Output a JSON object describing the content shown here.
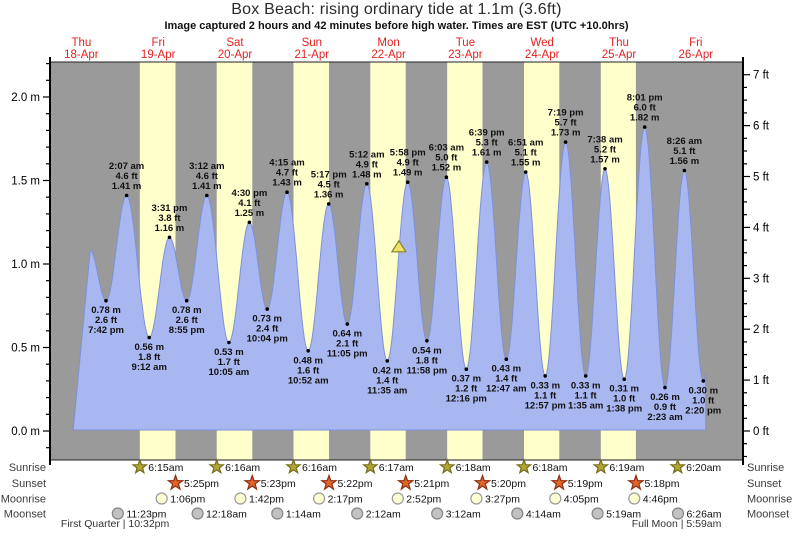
{
  "header": {
    "title": "Box Beach: rising  ordinary tide at 1.1m (3.6ft)",
    "subtitle": "Image captured 2 hours and 42 minutes before high water. Times are EST (UTC +10.0hrs)"
  },
  "colors": {
    "plot_bg": "#9a9a9a",
    "daylight": "#ffffcc",
    "tide_fill": "#a9b7f0",
    "tide_stroke": "#7d92d9",
    "axis": "#000000",
    "day_label": "#e32222",
    "tide_text": "#111111",
    "marker_fill": "#ede26a",
    "marker_stroke": "#8a822a",
    "sunrise_fill": "#b3a636",
    "sunrise_stroke": "#756d1b",
    "sunset_fill": "#e0662c",
    "sunset_stroke": "#8e2f12",
    "moonrise_fill": "#ffffd4",
    "moonrise_stroke": "#9a9a9a",
    "moonset_fill": "#c2c2c2",
    "moonset_stroke": "#858585",
    "row_label": "#3d3d3d"
  },
  "chart_data": {
    "type": "area",
    "title": "Box Beach tide height over time",
    "x_unit": "hours since Thu 18-Apr 00:00 EST",
    "y_unit_left": "m",
    "y_unit_right": "ft",
    "ylim_m": [
      -0.17,
      2.21
    ],
    "days": [
      {
        "name": "Thu",
        "date": "18-Apr"
      },
      {
        "name": "Fri",
        "date": "19-Apr"
      },
      {
        "name": "Sat",
        "date": "20-Apr"
      },
      {
        "name": "Sun",
        "date": "21-Apr"
      },
      {
        "name": "Mon",
        "date": "22-Apr"
      },
      {
        "name": "Tue",
        "date": "23-Apr"
      },
      {
        "name": "Wed",
        "date": "24-Apr"
      },
      {
        "name": "Thu",
        "date": "25-Apr"
      },
      {
        "name": "Fri",
        "date": "26-Apr"
      }
    ],
    "y_axis_left_ticks": [
      "0.0 m",
      "0.5 m",
      "1.0 m",
      "1.5 m",
      "2.0 m"
    ],
    "y_axis_right_ticks": [
      "0 ft",
      "1 ft",
      "2 ft",
      "3 ft",
      "4 ft",
      "5 ft",
      "6 ft",
      "7 ft"
    ],
    "tides": [
      {
        "kind": "H",
        "t": 14.75,
        "v": 1.08
      },
      {
        "kind": "L",
        "t": 19.7,
        "v": 0.78,
        "lines": [
          "0.78 m",
          "2.6 ft",
          "7:42 pm"
        ]
      },
      {
        "kind": "H",
        "t": 26.12,
        "v": 1.41,
        "lines": [
          "2:07 am",
          "4.6 ft",
          "1.41 m"
        ]
      },
      {
        "kind": "L",
        "t": 33.2,
        "v": 0.56,
        "lines": [
          "0.56 m",
          "1.8 ft",
          "9:12 am"
        ]
      },
      {
        "kind": "H",
        "t": 39.52,
        "v": 1.16,
        "lines": [
          "3:31 pm",
          "3.8 ft",
          "1.16 m"
        ]
      },
      {
        "kind": "L",
        "t": 44.92,
        "v": 0.78,
        "lines": [
          "0.78 m",
          "2.6 ft",
          "8:55 pm"
        ]
      },
      {
        "kind": "H",
        "t": 51.2,
        "v": 1.41,
        "lines": [
          "3:12 am",
          "4.6 ft",
          "1.41 m"
        ]
      },
      {
        "kind": "L",
        "t": 58.08,
        "v": 0.53,
        "lines": [
          "0.53 m",
          "1.7 ft",
          "10:05 am"
        ]
      },
      {
        "kind": "H",
        "t": 64.5,
        "v": 1.25,
        "lines": [
          "4:30 pm",
          "4.1 ft",
          "1.25 m"
        ]
      },
      {
        "kind": "L",
        "t": 70.07,
        "v": 0.73,
        "lines": [
          "0.73 m",
          "2.4 ft",
          "10:04 pm"
        ]
      },
      {
        "kind": "H",
        "t": 76.25,
        "v": 1.43,
        "lines": [
          "4:15 am",
          "4.7 ft",
          "1.43 m"
        ]
      },
      {
        "kind": "L",
        "t": 82.87,
        "v": 0.48,
        "lines": [
          "0.48 m",
          "1.6 ft",
          "10:52 am"
        ]
      },
      {
        "kind": "H",
        "t": 89.28,
        "v": 1.36,
        "lines": [
          "5:17 pm",
          "4.5 ft",
          "1.36 m"
        ]
      },
      {
        "kind": "L",
        "t": 95.08,
        "v": 0.64,
        "lines": [
          "0.64 m",
          "2.1 ft",
          "11:05 pm"
        ]
      },
      {
        "kind": "H",
        "t": 101.2,
        "v": 1.48,
        "lines": [
          "5:12 am",
          "4.9 ft",
          "1.48 m"
        ]
      },
      {
        "kind": "L",
        "t": 107.58,
        "v": 0.42,
        "lines": [
          "0.42 m",
          "1.4 ft",
          "11:35 am"
        ]
      },
      {
        "kind": "H",
        "t": 113.97,
        "v": 1.49,
        "lines": [
          "5:58 pm",
          "4.9 ft",
          "1.49 m"
        ]
      },
      {
        "kind": "L",
        "t": 119.97,
        "v": 0.54,
        "lines": [
          "0.54 m",
          "1.8 ft",
          "11:58 pm"
        ]
      },
      {
        "kind": "H",
        "t": 126.05,
        "v": 1.52,
        "lines": [
          "6:03 am",
          "5.0 ft",
          "1.52 m"
        ]
      },
      {
        "kind": "L",
        "t": 132.27,
        "v": 0.37,
        "lines": [
          "0.37 m",
          "1.2 ft",
          "12:16 pm"
        ]
      },
      {
        "kind": "H",
        "t": 138.65,
        "v": 1.61,
        "lines": [
          "6:39 pm",
          "5.3 ft",
          "1.61 m"
        ]
      },
      {
        "kind": "L",
        "t": 144.78,
        "v": 0.43,
        "lines": [
          "0.43 m",
          "1.4 ft",
          "12:47 am"
        ]
      },
      {
        "kind": "H",
        "t": 150.85,
        "v": 1.55,
        "lines": [
          "6:51 am",
          "5.1 ft",
          "1.55 m"
        ]
      },
      {
        "kind": "L",
        "t": 156.95,
        "v": 0.33,
        "lines": [
          "0.33 m",
          "1.1 ft",
          "12:57 pm"
        ]
      },
      {
        "kind": "H",
        "t": 163.32,
        "v": 1.73,
        "lines": [
          "7:19 pm",
          "5.7 ft",
          "1.73 m"
        ]
      },
      {
        "kind": "L",
        "t": 169.58,
        "v": 0.33,
        "lines": [
          "0.33 m",
          "1.1 ft",
          "1:35 am"
        ]
      },
      {
        "kind": "H",
        "t": 175.63,
        "v": 1.57,
        "lines": [
          "7:38 am",
          "5.2 ft",
          "1.57 m"
        ]
      },
      {
        "kind": "L",
        "t": 181.63,
        "v": 0.31,
        "lines": [
          "0.31 m",
          "1.0 ft",
          "1:38 pm"
        ]
      },
      {
        "kind": "H",
        "t": 188.02,
        "v": 1.82,
        "lines": [
          "8:01 pm",
          "6.0 ft",
          "1.82 m"
        ]
      },
      {
        "kind": "L",
        "t": 194.38,
        "v": 0.26,
        "lines": [
          "0.26 m",
          "0.9 ft",
          "2:23 am"
        ]
      },
      {
        "kind": "H",
        "t": 200.43,
        "v": 1.56,
        "lines": [
          "8:26 am",
          "5.1 ft",
          "1.56 m"
        ]
      },
      {
        "kind": "L",
        "t": 206.33,
        "v": 0.3,
        "lines": [
          "0.30 m",
          "1.0 ft",
          "2:20 pm"
        ]
      }
    ],
    "current_marker": {
      "t": 111.23,
      "v": 1.1,
      "note": "current tide 1.1m, rising, 2h42m before high water"
    }
  },
  "astro": {
    "rows": [
      {
        "name": "Sunrise",
        "icon": "sunrise-star-icon",
        "entries": [
          {
            "t": 30.25,
            "label": "6:15am"
          },
          {
            "t": 54.27,
            "label": "6:16am"
          },
          {
            "t": 78.27,
            "label": "6:16am"
          },
          {
            "t": 102.28,
            "label": "6:17am"
          },
          {
            "t": 126.3,
            "label": "6:18am"
          },
          {
            "t": 150.3,
            "label": "6:18am"
          },
          {
            "t": 174.32,
            "label": "6:19am"
          },
          {
            "t": 198.33,
            "label": "6:20am"
          }
        ]
      },
      {
        "name": "Sunset",
        "icon": "sunset-star-icon",
        "entries": [
          {
            "t": 41.42,
            "label": "5:25pm"
          },
          {
            "t": 65.38,
            "label": "5:23pm"
          },
          {
            "t": 89.37,
            "label": "5:22pm"
          },
          {
            "t": 113.35,
            "label": "5:21pm"
          },
          {
            "t": 137.33,
            "label": "5:20pm"
          },
          {
            "t": 161.32,
            "label": "5:19pm"
          },
          {
            "t": 185.3,
            "label": "5:18pm"
          }
        ]
      },
      {
        "name": "Moonrise",
        "icon": "moonrise-circle-icon",
        "entries": [
          {
            "t": 37.1,
            "label": "1:06pm"
          },
          {
            "t": 61.7,
            "label": "1:42pm"
          },
          {
            "t": 86.28,
            "label": "2:17pm"
          },
          {
            "t": 110.87,
            "label": "2:52pm"
          },
          {
            "t": 135.45,
            "label": "3:27pm"
          },
          {
            "t": 160.08,
            "label": "4:05pm"
          },
          {
            "t": 184.77,
            "label": "4:46pm"
          }
        ]
      },
      {
        "name": "Moonset",
        "icon": "moonset-circle-icon",
        "entries": [
          {
            "t": 23.38,
            "label": "11:23pm"
          },
          {
            "t": 48.3,
            "label": "12:18am"
          },
          {
            "t": 73.23,
            "label": "1:14am"
          },
          {
            "t": 98.2,
            "label": "2:12am"
          },
          {
            "t": 123.2,
            "label": "3:12am"
          },
          {
            "t": 148.23,
            "label": "4:14am"
          },
          {
            "t": 173.32,
            "label": "5:19am"
          },
          {
            "t": 198.43,
            "label": "6:26am"
          }
        ]
      }
    ],
    "phases": [
      {
        "label": "First Quarter | 10:32pm",
        "t": 22.53
      },
      {
        "label": "Full Moon | 5:59am",
        "t": 197.98
      }
    ]
  }
}
